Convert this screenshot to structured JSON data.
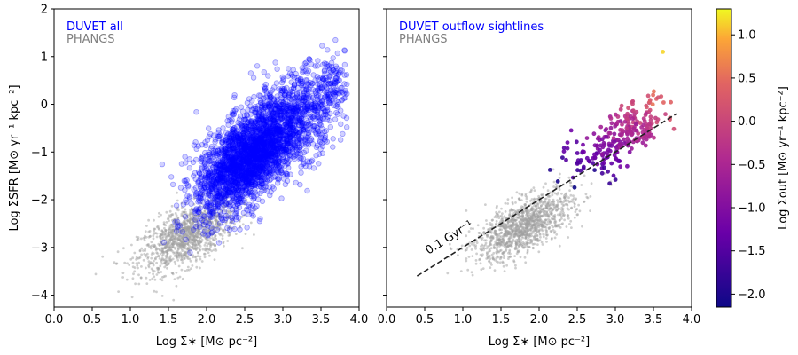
{
  "chart_data": [
    {
      "type": "scatter",
      "panel": "left",
      "xlabel": "Log Σ∗ [M⊙ pc⁻²]",
      "ylabel": "Log ΣSFR [M⊙ yr⁻¹ kpc⁻²]",
      "xlim": [
        0.0,
        4.0
      ],
      "ylim": [
        -4.25,
        2.0
      ],
      "xticks": [
        "0.0",
        "0.5",
        "1.0",
        "1.5",
        "2.0",
        "2.5",
        "3.0",
        "3.5",
        "4.0"
      ],
      "yticks": [
        "2",
        "1",
        "0",
        "−1",
        "−2",
        "−3",
        "−4"
      ],
      "legend_position": "top-left",
      "series": [
        {
          "name": "PHANGS",
          "color": "#a0a0a0",
          "clusters": [
            {
              "x": [
                1.75,
                0.32
              ],
              "y": [
                -2.75,
                0.38
              ],
              "n": 1300,
              "rho": 0.6
            }
          ]
        },
        {
          "name": "DUVET all",
          "color": "#0000ff",
          "clusters": [
            {
              "x": [
                2.5,
                0.32
              ],
              "y": [
                -1.2,
                0.55
              ],
              "n": 2200,
              "rho": 0.55
            },
            {
              "x": [
                3.1,
                0.35
              ],
              "y": [
                -0.3,
                0.55
              ],
              "n": 900,
              "rho": 0.5
            },
            {
              "x": [
                3.65,
                0.12
              ],
              "y": [
                0.4,
                0.35
              ],
              "n": 80,
              "rho": 0.3
            }
          ]
        }
      ]
    },
    {
      "type": "scatter",
      "panel": "right",
      "xlabel": "Log Σ∗ [M⊙ pc⁻²]",
      "xlim": [
        0.0,
        4.0
      ],
      "ylim": [
        -4.25,
        2.0
      ],
      "xticks": [
        "0.0",
        "0.5",
        "1.0",
        "1.5",
        "2.0",
        "2.5",
        "3.0",
        "3.5",
        "4.0"
      ],
      "legend_position": "top-left",
      "series": [
        {
          "name": "PHANGS",
          "color": "#a0a0a0",
          "clusters": [
            {
              "x": [
                1.8,
                0.32
              ],
              "y": [
                -2.55,
                0.36
              ],
              "n": 1300,
              "rho": 0.65
            }
          ]
        },
        {
          "name": "DUVET outflow sightlines",
          "color": "#0000ff",
          "colored_by": "Log Σ̇out",
          "clusters": [
            {
              "x": [
                3.05,
                0.3
              ],
              "y": [
                -0.7,
                0.4
              ],
              "n": 260,
              "rho": 0.65
            }
          ]
        }
      ],
      "reference_line": {
        "label": "0.1 Gyr⁻¹",
        "x": [
          0.4,
          3.8
        ],
        "y": [
          -3.6,
          -0.2
        ]
      }
    }
  ],
  "colorbar": {
    "label": "Log Σ̇out [M⊙ yr⁻¹ kpc⁻²]",
    "range": [
      -2.15,
      1.3
    ],
    "ticks": [
      "1.0",
      "0.5",
      "0.0",
      "−0.5",
      "−1.0",
      "−1.5",
      "−2.0"
    ],
    "tick_values": [
      1.0,
      0.5,
      0.0,
      -0.5,
      -1.0,
      -1.5,
      -2.0
    ],
    "colormap": "plasma"
  },
  "legend": {
    "left": [
      "DUVET all",
      "PHANGS"
    ],
    "right": [
      "DUVET outflow sightlines",
      "PHANGS"
    ],
    "colors": [
      "#0000ff",
      "#808080"
    ]
  }
}
